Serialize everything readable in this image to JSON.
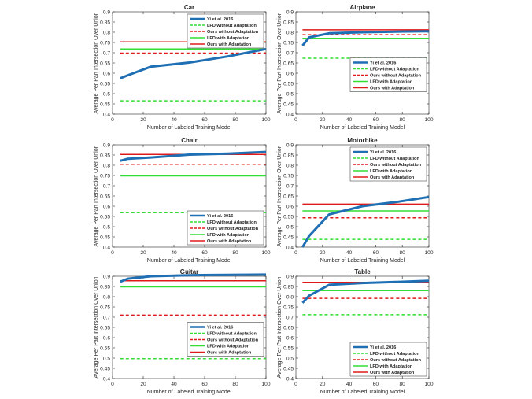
{
  "figure": {
    "background": "#ffffff"
  },
  "chart_data": [
    {
      "type": "line",
      "title": "Car",
      "xlabel": "Number of Labeled Training Model",
      "ylabel": "Average Per Part Intersection Over Union",
      "xlim": [
        0,
        100
      ],
      "ylim": [
        0.4,
        0.9
      ],
      "xticks": [
        "0",
        "20",
        "40",
        "60",
        "80",
        "100"
      ],
      "yticks": [
        "0.4",
        "0.45",
        "0.5",
        "0.55",
        "0.6",
        "0.65",
        "0.7",
        "0.75",
        "0.8",
        "0.85",
        "0.9"
      ],
      "legend": "top-right",
      "series": [
        {
          "name": "Yi et al. 2016",
          "color": "#1f6fb4",
          "style": "solid",
          "width": 3,
          "x": [
            5,
            10,
            25,
            50,
            75,
            100
          ],
          "y": [
            0.575,
            0.59,
            0.632,
            0.652,
            0.682,
            0.718
          ]
        },
        {
          "name": "LFD without Adaptation",
          "color": "#33dd33",
          "style": "dashed",
          "width": 1.5,
          "x": [
            5,
            100
          ],
          "y": [
            0.465,
            0.465
          ]
        },
        {
          "name": "Ours without Adaptation",
          "color": "#e01a1a",
          "style": "dashed",
          "width": 1.5,
          "x": [
            5,
            100
          ],
          "y": [
            0.698,
            0.698
          ]
        },
        {
          "name": "LFD with Adaptation",
          "color": "#33dd33",
          "style": "solid",
          "width": 1.5,
          "x": [
            5,
            100
          ],
          "y": [
            0.718,
            0.718
          ]
        },
        {
          "name": "Ours with Adaptation",
          "color": "#e01a1a",
          "style": "solid",
          "width": 1.5,
          "x": [
            5,
            100
          ],
          "y": [
            0.753,
            0.753
          ]
        }
      ]
    },
    {
      "type": "line",
      "title": "Airplane",
      "xlabel": "Number of Labeled Training Model",
      "ylabel": "Average Per Part Intersection Over Union",
      "xlim": [
        0,
        100
      ],
      "ylim": [
        0.4,
        0.9
      ],
      "xticks": [
        "0",
        "20",
        "40",
        "60",
        "80",
        "100"
      ],
      "yticks": [
        "0.4",
        "0.45",
        "0.5",
        "0.55",
        "0.6",
        "0.65",
        "0.7",
        "0.75",
        "0.8",
        "0.85",
        "0.9"
      ],
      "legend": "center-right",
      "series": [
        {
          "name": "Yi et al. 2016",
          "color": "#1f6fb4",
          "style": "solid",
          "width": 3,
          "x": [
            5,
            10,
            25,
            50,
            75,
            100
          ],
          "y": [
            0.735,
            0.775,
            0.795,
            0.8,
            0.803,
            0.805
          ]
        },
        {
          "name": "LFD without Adaptation",
          "color": "#33dd33",
          "style": "dashed",
          "width": 1.5,
          "x": [
            5,
            100
          ],
          "y": [
            0.673,
            0.673
          ]
        },
        {
          "name": "Ours without Adaptation",
          "color": "#e01a1a",
          "style": "dashed",
          "width": 1.5,
          "x": [
            5,
            100
          ],
          "y": [
            0.788,
            0.788
          ]
        },
        {
          "name": "LFD with Adaptation",
          "color": "#33dd33",
          "style": "solid",
          "width": 1.5,
          "x": [
            5,
            100
          ],
          "y": [
            0.77,
            0.77
          ]
        },
        {
          "name": "Ours with Adaptation",
          "color": "#e01a1a",
          "style": "solid",
          "width": 1.5,
          "x": [
            5,
            100
          ],
          "y": [
            0.812,
            0.812
          ]
        }
      ]
    },
    {
      "type": "line",
      "title": "Chair",
      "xlabel": "Number of Labeled Training Model",
      "ylabel": "Average Per Part Intersection Over Union",
      "xlim": [
        0,
        100
      ],
      "ylim": [
        0.4,
        0.9
      ],
      "xticks": [
        "0",
        "20",
        "40",
        "60",
        "80",
        "100"
      ],
      "yticks": [
        "0.4",
        "0.45",
        "0.5",
        "0.55",
        "0.6",
        "0.65",
        "0.7",
        "0.75",
        "0.8",
        "0.85",
        "0.9"
      ],
      "legend": "bottom-right",
      "series": [
        {
          "name": "Yi et al. 2016",
          "color": "#1f6fb4",
          "style": "solid",
          "width": 3,
          "x": [
            5,
            10,
            25,
            50,
            75,
            100
          ],
          "y": [
            0.822,
            0.832,
            0.838,
            0.852,
            0.857,
            0.865
          ]
        },
        {
          "name": "LFD without Adaptation",
          "color": "#33dd33",
          "style": "dashed",
          "width": 1.5,
          "x": [
            5,
            100
          ],
          "y": [
            0.568,
            0.568
          ]
        },
        {
          "name": "Ours without Adaptation",
          "color": "#e01a1a",
          "style": "dashed",
          "width": 1.5,
          "x": [
            5,
            100
          ],
          "y": [
            0.805,
            0.805
          ]
        },
        {
          "name": "LFD with Adaptation",
          "color": "#33dd33",
          "style": "solid",
          "width": 1.5,
          "x": [
            5,
            100
          ],
          "y": [
            0.748,
            0.748
          ]
        },
        {
          "name": "Ours with Adaptation",
          "color": "#e01a1a",
          "style": "solid",
          "width": 1.5,
          "x": [
            5,
            100
          ],
          "y": [
            0.853,
            0.853
          ]
        }
      ]
    },
    {
      "type": "line",
      "title": "Motorbike",
      "xlabel": "Number of Labeled Training Model",
      "ylabel": "Average Per Part Intersection Over Union",
      "xlim": [
        0,
        100
      ],
      "ylim": [
        0.4,
        0.9
      ],
      "xticks": [
        "0",
        "20",
        "40",
        "60",
        "80",
        "100"
      ],
      "yticks": [
        "0.4",
        "0.45",
        "0.5",
        "0.55",
        "0.6",
        "0.65",
        "0.7",
        "0.75",
        "0.8",
        "0.85",
        "0.9"
      ],
      "legend": "top-right",
      "series": [
        {
          "name": "Yi et al. 2016",
          "color": "#1f6fb4",
          "style": "solid",
          "width": 3,
          "x": [
            5,
            10,
            25,
            50,
            75,
            100
          ],
          "y": [
            0.4,
            0.455,
            0.56,
            0.6,
            0.62,
            0.645
          ]
        },
        {
          "name": "LFD without Adaptation",
          "color": "#33dd33",
          "style": "dashed",
          "width": 1.5,
          "x": [
            5,
            100
          ],
          "y": [
            0.438,
            0.438
          ]
        },
        {
          "name": "Ours without Adaptation",
          "color": "#e01a1a",
          "style": "dashed",
          "width": 1.5,
          "x": [
            5,
            100
          ],
          "y": [
            0.543,
            0.543
          ]
        },
        {
          "name": "LFD with Adaptation",
          "color": "#33dd33",
          "style": "solid",
          "width": 1.5,
          "x": [
            5,
            100
          ],
          "y": [
            0.577,
            0.577
          ]
        },
        {
          "name": "Ours with Adaptation",
          "color": "#e01a1a",
          "style": "solid",
          "width": 1.5,
          "x": [
            5,
            100
          ],
          "y": [
            0.61,
            0.61
          ]
        }
      ]
    },
    {
      "type": "line",
      "title": "Guitar",
      "xlabel": "Number of Labeled Training Model",
      "ylabel": "Average Per Part Intersection Over Union",
      "xlim": [
        0,
        100
      ],
      "ylim": [
        0.4,
        0.9
      ],
      "xticks": [
        "0",
        "20",
        "40",
        "60",
        "80",
        "100"
      ],
      "yticks": [
        "0.4",
        "0.45",
        "0.5",
        "0.55",
        "0.6",
        "0.65",
        "0.7",
        "0.75",
        "0.8",
        "0.85",
        "0.9"
      ],
      "legend": "center-right",
      "series": [
        {
          "name": "Yi et al. 2016",
          "color": "#1f6fb4",
          "style": "solid",
          "width": 3,
          "x": [
            5,
            10,
            25,
            50,
            75,
            100
          ],
          "y": [
            0.873,
            0.888,
            0.9,
            0.905,
            0.907,
            0.908
          ]
        },
        {
          "name": "LFD without Adaptation",
          "color": "#33dd33",
          "style": "dashed",
          "width": 1.5,
          "x": [
            5,
            100
          ],
          "y": [
            0.497,
            0.497
          ]
        },
        {
          "name": "Ours without Adaptation",
          "color": "#e01a1a",
          "style": "dashed",
          "width": 1.5,
          "x": [
            5,
            100
          ],
          "y": [
            0.71,
            0.71
          ]
        },
        {
          "name": "LFD with Adaptation",
          "color": "#33dd33",
          "style": "solid",
          "width": 1.5,
          "x": [
            5,
            100
          ],
          "y": [
            0.848,
            0.848
          ]
        },
        {
          "name": "Ours with Adaptation",
          "color": "#e01a1a",
          "style": "solid",
          "width": 1.5,
          "x": [
            5,
            100
          ],
          "y": [
            0.878,
            0.878
          ]
        }
      ]
    },
    {
      "type": "line",
      "title": "Table",
      "xlabel": "Number of Labeled Training Model",
      "ylabel": "Average Per Part Intersection Over Union",
      "xlim": [
        0,
        100
      ],
      "ylim": [
        0.4,
        0.9
      ],
      "xticks": [
        "0",
        "20",
        "40",
        "60",
        "80",
        "100"
      ],
      "yticks": [
        "0.4",
        "0.45",
        "0.5",
        "0.55",
        "0.6",
        "0.65",
        "0.7",
        "0.75",
        "0.8",
        "0.85",
        "0.9"
      ],
      "legend": "bottom-right",
      "series": [
        {
          "name": "Yi et al. 2016",
          "color": "#1f6fb4",
          "style": "solid",
          "width": 3,
          "x": [
            5,
            10,
            25,
            50,
            75,
            100
          ],
          "y": [
            0.77,
            0.805,
            0.858,
            0.867,
            0.872,
            0.878
          ]
        },
        {
          "name": "LFD without Adaptation",
          "color": "#33dd33",
          "style": "dashed",
          "width": 1.5,
          "x": [
            5,
            100
          ],
          "y": [
            0.712,
            0.712
          ]
        },
        {
          "name": "Ours without Adaptation",
          "color": "#e01a1a",
          "style": "dashed",
          "width": 1.5,
          "x": [
            5,
            100
          ],
          "y": [
            0.792,
            0.792
          ]
        },
        {
          "name": "LFD with Adaptation",
          "color": "#33dd33",
          "style": "solid",
          "width": 1.5,
          "x": [
            5,
            100
          ],
          "y": [
            0.83,
            0.83
          ]
        },
        {
          "name": "Ours with Adaptation",
          "color": "#e01a1a",
          "style": "solid",
          "width": 1.5,
          "x": [
            5,
            100
          ],
          "y": [
            0.87,
            0.87
          ]
        }
      ]
    }
  ]
}
